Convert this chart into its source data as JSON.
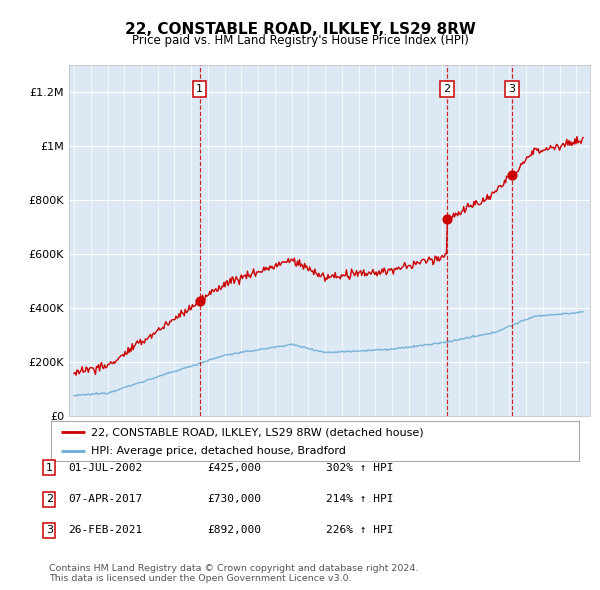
{
  "title": "22, CONSTABLE ROAD, ILKLEY, LS29 8RW",
  "subtitle": "Price paid vs. HM Land Registry's House Price Index (HPI)",
  "ylabel_ticks": [
    "£0",
    "£200K",
    "£400K",
    "£600K",
    "£800K",
    "£1M",
    "£1.2M"
  ],
  "ytick_vals": [
    0,
    200000,
    400000,
    600000,
    800000,
    1000000,
    1200000
  ],
  "ylim": [
    0,
    1300000
  ],
  "xlim_start": 1994.7,
  "xlim_end": 2025.8,
  "plot_bg_color": "#dce9f5",
  "fig_bg_color": "#ffffff",
  "red_color": "#cc0000",
  "blue_color": "#6baed6",
  "dashed_color": "#cc0000",
  "transactions": [
    {
      "date_num": 2002.5,
      "price": 425000,
      "label": "1"
    },
    {
      "date_num": 2017.27,
      "price": 730000,
      "label": "2"
    },
    {
      "date_num": 2021.15,
      "price": 892000,
      "label": "3"
    }
  ],
  "legend_line1": "22, CONSTABLE ROAD, ILKLEY, LS29 8RW (detached house)",
  "legend_line2": "HPI: Average price, detached house, Bradford",
  "table_rows": [
    {
      "num": "1",
      "date": "01-JUL-2002",
      "price": "£425,000",
      "hpi": "302% ↑ HPI"
    },
    {
      "num": "2",
      "date": "07-APR-2017",
      "price": "£730,000",
      "hpi": "214% ↑ HPI"
    },
    {
      "num": "3",
      "date": "26-FEB-2021",
      "price": "£892,000",
      "hpi": "226% ↑ HPI"
    }
  ],
  "footer": "Contains HM Land Registry data © Crown copyright and database right 2024.\nThis data is licensed under the Open Government Licence v3.0."
}
